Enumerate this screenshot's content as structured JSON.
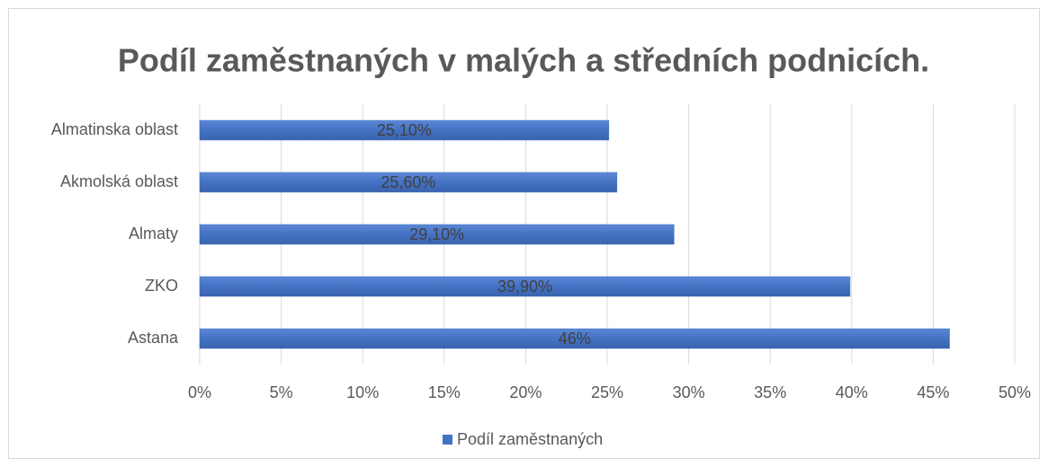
{
  "chart_data": {
    "type": "bar",
    "orientation": "horizontal",
    "title": "Podíl zaměstnaných v malých a středních podnicích.",
    "categories": [
      "Almatinska oblast",
      "Akmolská oblast",
      "Almaty",
      "ZKO",
      "Astana"
    ],
    "series": [
      {
        "name": "Podíl zaměstnaných",
        "color": "#4472c4",
        "values": [
          25.1,
          25.6,
          29.1,
          39.9,
          46
        ],
        "value_labels": [
          "25,10%",
          "25,60%",
          "29,10%",
          "39,90%",
          "46%"
        ]
      }
    ],
    "xlim": [
      0,
      50
    ],
    "xticks": [
      {
        "value": 0,
        "label": "0%"
      },
      {
        "value": 5,
        "label": "5%"
      },
      {
        "value": 10,
        "label": "10%"
      },
      {
        "value": 15,
        "label": "15%"
      },
      {
        "value": 20,
        "label": "20%"
      },
      {
        "value": 25,
        "label": "25%"
      },
      {
        "value": 30,
        "label": "30%"
      },
      {
        "value": 35,
        "label": "35%"
      },
      {
        "value": 40,
        "label": "40%"
      },
      {
        "value": 45,
        "label": "45%"
      },
      {
        "value": 50,
        "label": "50%"
      }
    ],
    "grid": true,
    "legend": "bottom"
  }
}
